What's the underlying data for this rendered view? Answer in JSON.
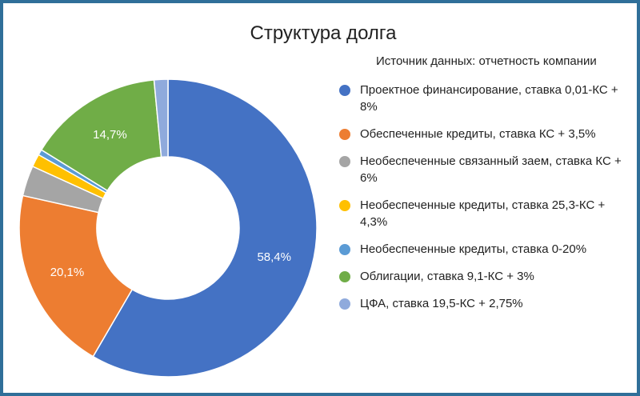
{
  "chart_data": {
    "type": "pie",
    "donut": true,
    "title": "Структура долга",
    "subtitle": "Источник данных: отчетность компании",
    "legend_position": "right",
    "slices": [
      {
        "label": "Проектное финансирование, ставка 0,01-КС + 8%",
        "value": 58.4,
        "display": "58,4%",
        "color": "#4472c4"
      },
      {
        "label": "Обеспеченные кредиты, ставка КС + 3,5%",
        "value": 20.1,
        "display": "20,1%",
        "color": "#ed7d31"
      },
      {
        "label": "Необеспеченные связанный заем, ставка КС + 6%",
        "value": 3.3,
        "display": "",
        "color": "#a5a5a5"
      },
      {
        "label": "Необеспеченные кредиты, ставка 25,3-КС + 4,3%",
        "value": 1.4,
        "display": "",
        "color": "#ffc000"
      },
      {
        "label": "Необеспеченные кредиты, ставка 0-20%",
        "value": 0.6,
        "display": "",
        "color": "#5b9bd5"
      },
      {
        "label": "Облигации, ставка 9,1-КС + 3%",
        "value": 14.7,
        "display": "14,7%",
        "color": "#70ad47"
      },
      {
        "label": "ЦФА, ставка 19,5-КС + 2,75%",
        "value": 1.5,
        "display": "",
        "color": "#8faadc"
      }
    ]
  }
}
